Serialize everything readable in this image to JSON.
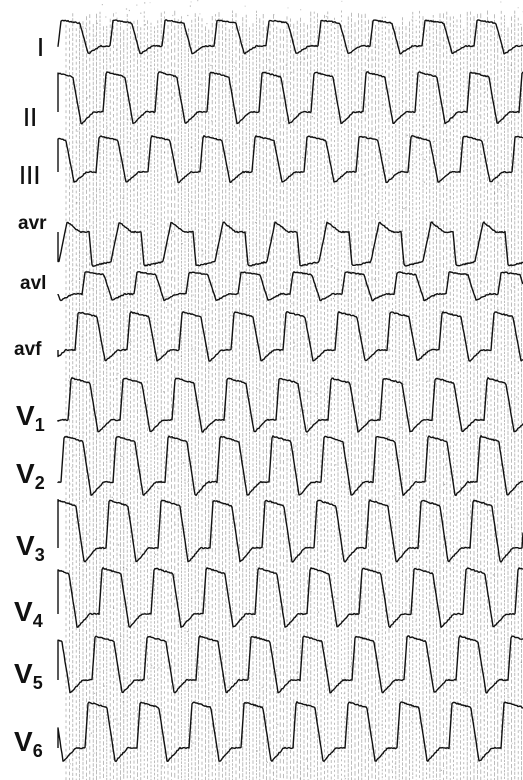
{
  "ecg": {
    "paper_color": "#ffffff",
    "grid_color": "#555555",
    "trace_color": "#111111",
    "leads": [
      {
        "id": "I",
        "label": "I",
        "sub": "",
        "morphology": "upright-small"
      },
      {
        "id": "II",
        "label": "II",
        "sub": "",
        "morphology": "upright"
      },
      {
        "id": "III",
        "label": "III",
        "sub": "",
        "morphology": "upright"
      },
      {
        "id": "avr",
        "label": "avr",
        "sub": "",
        "morphology": "inverted"
      },
      {
        "id": "avl",
        "label": "avl",
        "sub": "",
        "morphology": "upright-small"
      },
      {
        "id": "avf",
        "label": "avf",
        "sub": "",
        "morphology": "upright"
      },
      {
        "id": "V1",
        "label": "V",
        "sub": "1",
        "morphology": "upright"
      },
      {
        "id": "V2",
        "label": "V",
        "sub": "2",
        "morphology": "upright"
      },
      {
        "id": "V3",
        "label": "V",
        "sub": "3",
        "morphology": "upright"
      },
      {
        "id": "V4",
        "label": "V",
        "sub": "4",
        "morphology": "upright"
      },
      {
        "id": "V5",
        "label": "V",
        "sub": "5",
        "morphology": "upright"
      },
      {
        "id": "V6",
        "label": "V",
        "sub": "6",
        "morphology": "upright"
      }
    ]
  }
}
